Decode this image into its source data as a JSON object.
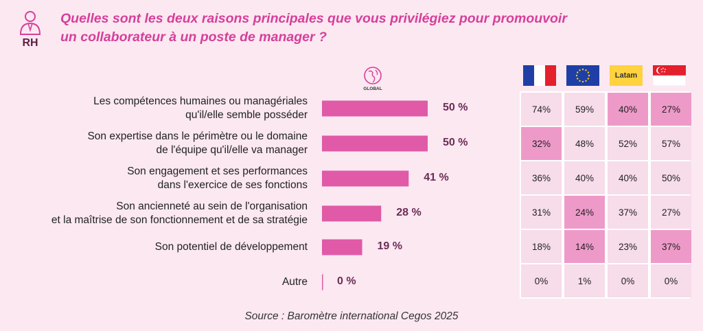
{
  "header": {
    "badge": "RH",
    "title_line1": "Quelles sont les deux raisons principales que vous privilégiez pour promouvoir",
    "title_line2": "un collaborateur à un poste de manager ?"
  },
  "global_label": "GLOBAL",
  "source": "Source : Baromètre international Cegos 2025",
  "colors": {
    "bar": "#e05aa8",
    "title": "#d63f9a",
    "cell_light": "#f7dcea",
    "cell_dark": "#ee9ac9"
  },
  "chart_data": {
    "type": "bar",
    "orientation": "horizontal",
    "categories": [
      [
        "Les compétences humaines ou managériales",
        "qu'il/elle semble posséder"
      ],
      [
        "Son expertise dans le périmètre ou le domaine",
        "de l'équipe qu'il/elle va manager"
      ],
      [
        "Son engagement et ses performances",
        "dans l'exercice de ses fonctions"
      ],
      [
        "Son ancienneté au sein de l'organisation",
        "et la maîtrise de son fonctionnement et de sa stratégie"
      ],
      [
        "Son potentiel de développement"
      ],
      [
        "Autre"
      ]
    ],
    "values": [
      50,
      50,
      41,
      28,
      19,
      0
    ],
    "value_labels": [
      "50 %",
      "50 %",
      "41 %",
      "28 %",
      "19 %",
      "0 %"
    ],
    "xlim": [
      0,
      100
    ]
  },
  "regions": [
    {
      "icon": "france-flag-icon",
      "label": ""
    },
    {
      "icon": "eu-flag-icon",
      "label": ""
    },
    {
      "icon": "latam-icon",
      "label": "Latam"
    },
    {
      "icon": "singapore-flag-icon",
      "label": ""
    }
  ],
  "table": {
    "rows": [
      [
        "74%",
        "59%",
        "40%",
        "27%"
      ],
      [
        "32%",
        "48%",
        "52%",
        "57%"
      ],
      [
        "36%",
        "40%",
        "40%",
        "50%"
      ],
      [
        "31%",
        "24%",
        "37%",
        "27%"
      ],
      [
        "18%",
        "14%",
        "23%",
        "37%"
      ],
      [
        "0%",
        "1%",
        "0%",
        "0%"
      ]
    ],
    "highlight": [
      [
        false,
        false,
        true,
        true
      ],
      [
        true,
        false,
        false,
        false
      ],
      [
        false,
        false,
        false,
        false
      ],
      [
        false,
        true,
        false,
        false
      ],
      [
        false,
        true,
        false,
        true
      ],
      [
        false,
        false,
        false,
        false
      ]
    ]
  }
}
